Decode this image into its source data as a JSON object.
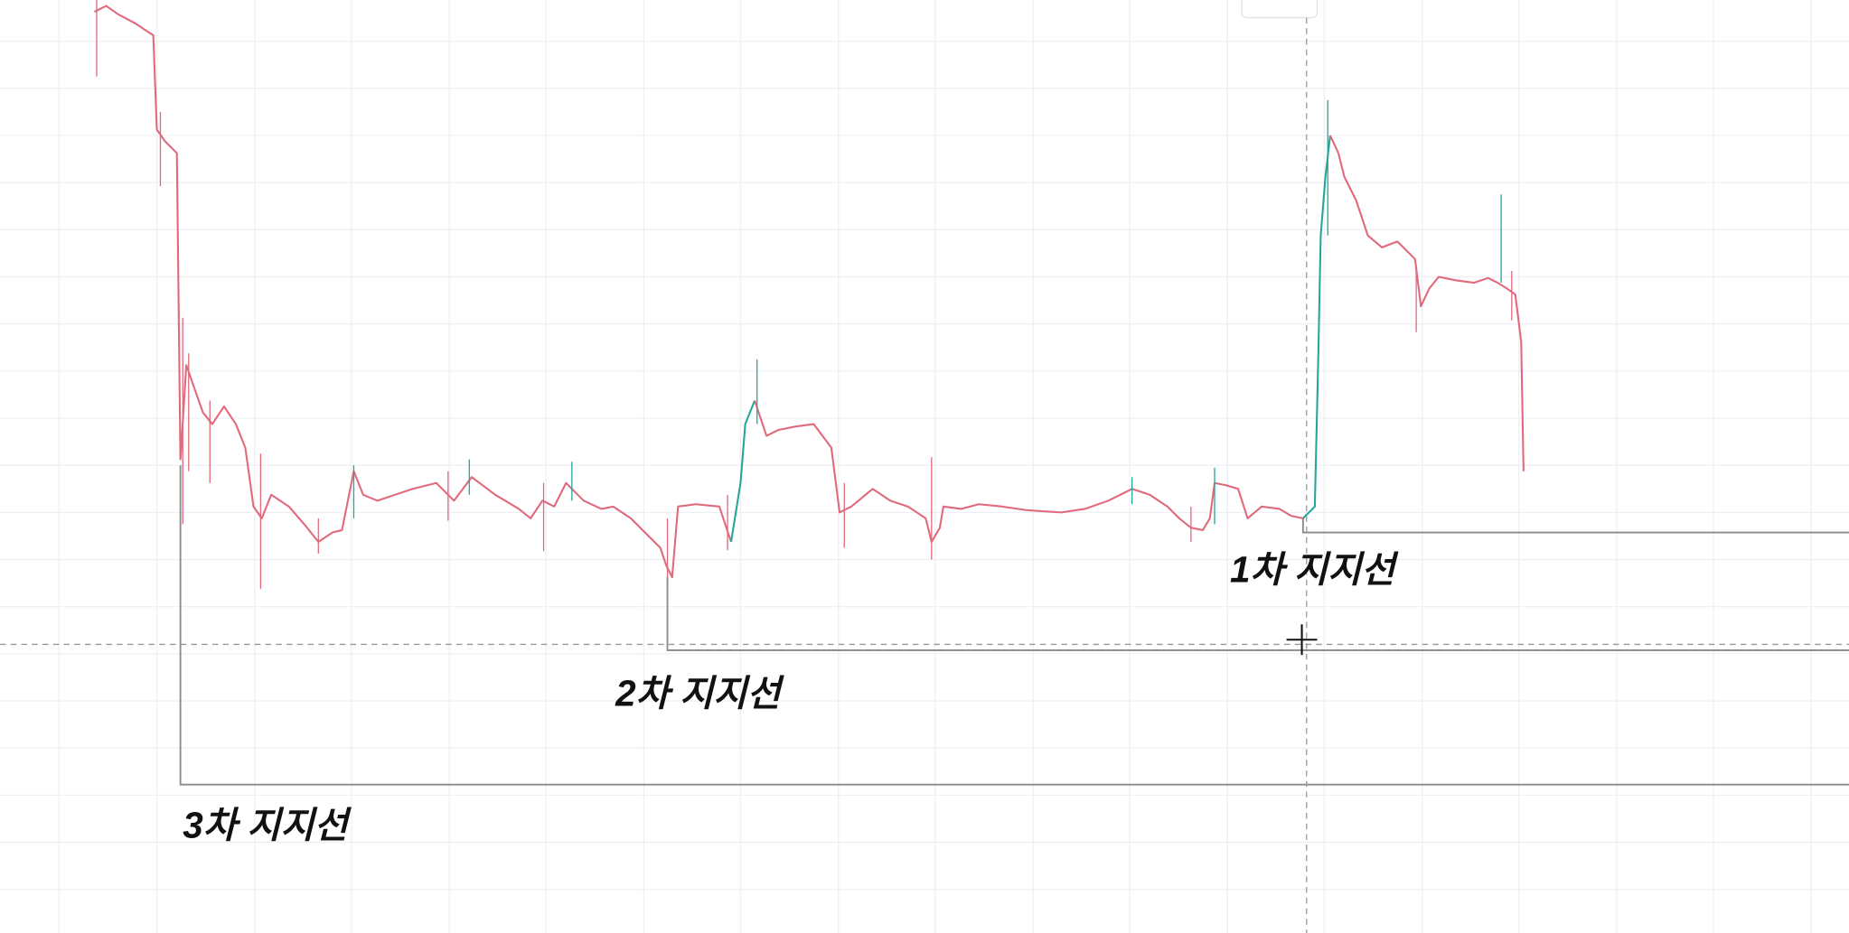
{
  "annotations": [
    {
      "label": "1차 지지선"
    },
    {
      "label": "2차 지지선"
    },
    {
      "label": "3차 지지선"
    }
  ]
}
